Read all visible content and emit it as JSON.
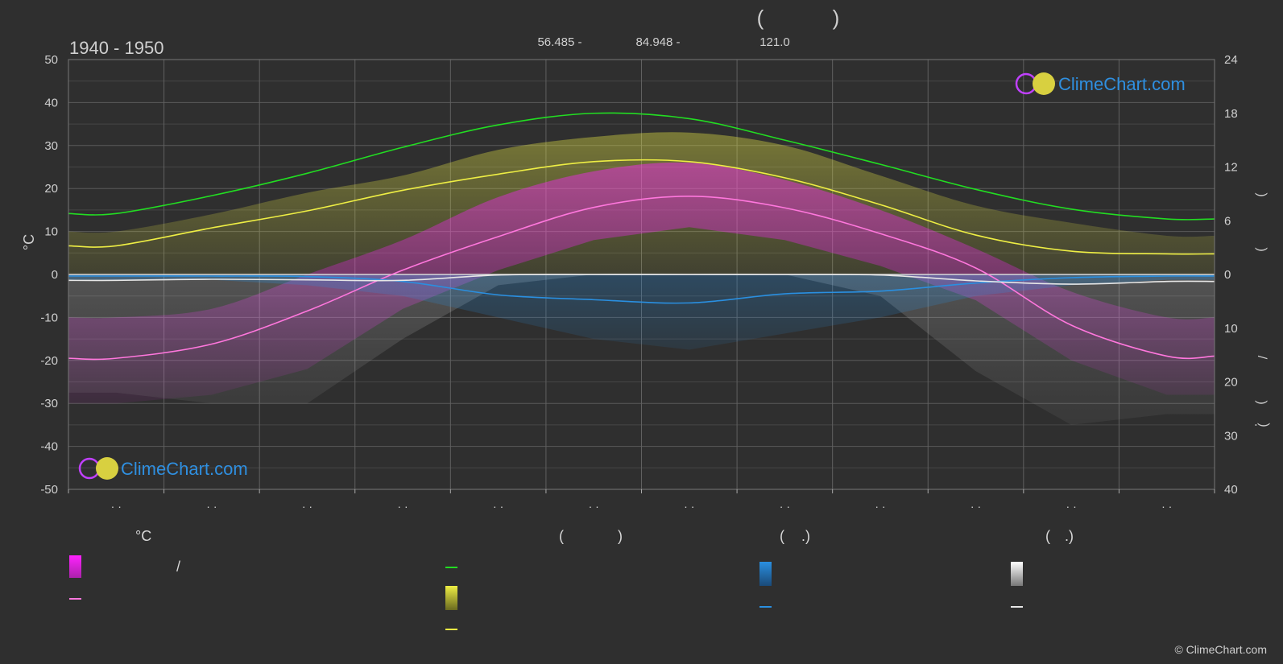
{
  "header": {
    "paren_left": "(",
    "paren_right": ")",
    "period": "1940 - 1950",
    "coord_lat": "56.485 -",
    "coord_lon": "84.948 -",
    "coord_elev": "121.0"
  },
  "brand": {
    "name": "ClimeChart.com",
    "copyright": "© ClimeChart.com"
  },
  "chart_data": {
    "type": "line",
    "ylabel": "°C",
    "left_axis": {
      "ylim": [
        -50,
        50
      ],
      "ticks": [
        50,
        40,
        30,
        20,
        10,
        0,
        -10,
        -20,
        -30,
        -40,
        -50
      ]
    },
    "right_axis_upper": {
      "ylim": [
        0,
        24
      ],
      "ticks": [
        24,
        18,
        12,
        6,
        0
      ]
    },
    "right_axis_lower": {
      "ylim": [
        0,
        40
      ],
      "ticks": [
        10,
        20,
        30,
        40
      ]
    },
    "right_axis_label_glyphs": [
      ")",
      ")",
      "/",
      ")",
      "·",
      ")"
    ],
    "x_ticks": [
      "· ·",
      "· ·",
      "· ·",
      "· ·",
      "· ·",
      "· ·",
      "· ·",
      "· ·",
      "· ·",
      "· ·",
      "· ·",
      "· ·"
    ],
    "months": 12,
    "series": [
      {
        "key": "daylight",
        "color": "#22dd22",
        "axis": "right_upper",
        "values": [
          6.8,
          8.8,
          11.3,
          14.2,
          16.7,
          18.0,
          17.4,
          15.0,
          12.3,
          9.5,
          7.3,
          6.2
        ]
      },
      {
        "key": "sunshine",
        "color": "#eeee44",
        "axis": "right_upper",
        "values": [
          3.2,
          5.2,
          7.1,
          9.4,
          11.2,
          12.6,
          12.6,
          10.8,
          7.8,
          4.4,
          2.6,
          2.3
        ]
      },
      {
        "key": "temp_mean",
        "color": "#ff77dd",
        "axis": "left",
        "values": [
          -19.5,
          -16.2,
          -8.5,
          1.0,
          8.8,
          15.6,
          18.2,
          15.5,
          9.5,
          1.5,
          -11.8,
          -19.0
        ]
      },
      {
        "key": "rain_mean",
        "color": "#2a8fe0",
        "axis": "right_lower",
        "values": [
          0.3,
          0.3,
          0.4,
          1.3,
          3.8,
          4.7,
          5.3,
          3.6,
          3.1,
          1.6,
          0.6,
          0.3
        ]
      },
      {
        "key": "snow_mean",
        "color": "#e6e6e6",
        "axis": "right_lower",
        "values": [
          1.1,
          0.9,
          1.0,
          1.1,
          0.1,
          0.0,
          0.0,
          0.0,
          0.1,
          1.2,
          1.8,
          1.3
        ]
      }
    ],
    "bands": {
      "temp_min": [
        -30,
        -28,
        -22,
        -8,
        1,
        8,
        11,
        8,
        2,
        -6,
        -20,
        -28
      ],
      "temp_max": [
        -10,
        -8,
        0,
        8,
        18,
        24,
        26,
        22,
        15,
        6,
        -4,
        -10
      ],
      "sun_band_top": [
        10,
        14,
        19,
        23,
        29,
        32,
        33,
        30,
        23,
        16,
        12,
        9
      ],
      "rain_band": [
        1,
        1,
        2,
        4,
        8,
        12,
        14,
        11,
        8,
        4,
        2,
        1
      ],
      "snow_band": [
        22,
        24,
        24,
        12,
        2,
        0,
        0,
        0,
        4,
        18,
        28,
        26
      ]
    }
  },
  "legend": {
    "col1": {
      "heading": "°C",
      "slash": "/"
    },
    "col2": {
      "heading_left": "(",
      "heading_right": ")"
    },
    "col3": {
      "heading_left": "(",
      "heading_right": ".)"
    },
    "col4": {
      "heading_left": "(",
      "heading_right": ".)"
    },
    "colors": {
      "temp_range": "#ff22ff",
      "temp_mean": "#ff77dd",
      "daylight": "#22dd22",
      "sunshine_range": "#eeee44",
      "sunshine": "#eeee44",
      "rain_range": "#2a8fe0",
      "rain_mean": "#2a8fe0",
      "snow_range": "#e6e6e6",
      "snow_mean": "#e6e6e6"
    }
  }
}
